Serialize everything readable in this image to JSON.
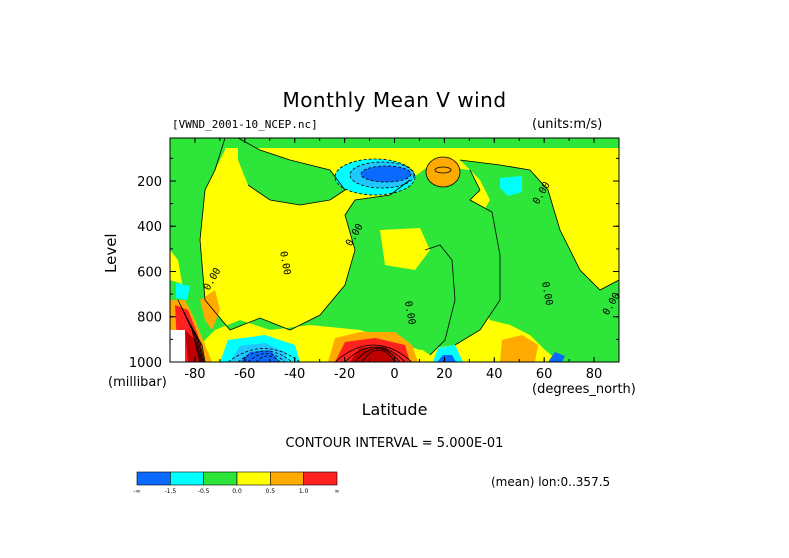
{
  "title": "Monthly Mean V wind",
  "file_label": "[VWND_2001-10_NCEP.nc]",
  "units_label": "(units:m/s)",
  "contour_interval": "CONTOUR INTERVAL = 5.000E-01",
  "mean_label": "(mean) lon:0..357.5",
  "colors": {
    "c1": "#0a6aff",
    "c2": "#1ec8ff",
    "c3": "#00ffff",
    "c4": "#2ee63a",
    "c5": "#ffff00",
    "c6": "#ffaa00",
    "c7": "#ff2020",
    "c8": "#c00000",
    "contour": "#000000"
  },
  "chart_data": {
    "type": "heatmap",
    "xlabel": "Latitude",
    "xunits": "(degrees_north)",
    "ylabel": "Level",
    "yunits": "(millibar)",
    "xlim": [
      -90,
      90
    ],
    "ylim": [
      1000,
      10
    ],
    "y_reversed": true,
    "xticks": [
      -80,
      -60,
      -40,
      -20,
      0,
      20,
      40,
      60,
      80
    ],
    "yticks": [
      200,
      400,
      600,
      800,
      1000
    ],
    "contour_labels": [
      {
        "x": -72,
        "y": 640,
        "text": "0.00"
      },
      {
        "x": -45,
        "y": 565,
        "text": "0.00"
      },
      {
        "x": -15,
        "y": 445,
        "text": "0.00"
      },
      {
        "x": 5,
        "y": 785,
        "text": "0.00"
      },
      {
        "x": 60,
        "y": 260,
        "text": "0.00"
      },
      {
        "x": 60,
        "y": 700,
        "text": "0.00"
      },
      {
        "x": 90,
        "y": 750,
        "text": "0.00"
      }
    ],
    "colorbar": {
      "labels": [
        "-∞",
        "-1.5",
        "-0.5",
        "0.0",
        "0.5",
        "1.0",
        "∞"
      ],
      "boundaries": [
        -1.5,
        -0.5,
        0.0,
        0.5,
        1.0
      ]
    },
    "fields": [
      {
        "name": "base",
        "value": 0.5,
        "color": "yellow"
      },
      {
        "name": "sh-jet-negative",
        "lat_range": [
          -30,
          -5
        ],
        "level_range": [
          100,
          200
        ],
        "value": -2.0
      },
      {
        "name": "eq-high",
        "lat_range": [
          10,
          30
        ],
        "level_range": [
          100,
          250
        ],
        "value": 1.0
      },
      {
        "name": "surface-positive-tropics",
        "lat_range": [
          -30,
          10
        ],
        "level_range": [
          850,
          1000
        ],
        "value": 1.8
      },
      {
        "name": "surface-negative-midlat-sh",
        "lat_range": [
          -70,
          -45
        ],
        "level_range": [
          850,
          1000
        ],
        "value": -1.8
      },
      {
        "name": "antarctic-positive",
        "lat_range": [
          -90,
          -75
        ],
        "level_range": [
          700,
          1000
        ],
        "value": 2.5
      }
    ]
  }
}
